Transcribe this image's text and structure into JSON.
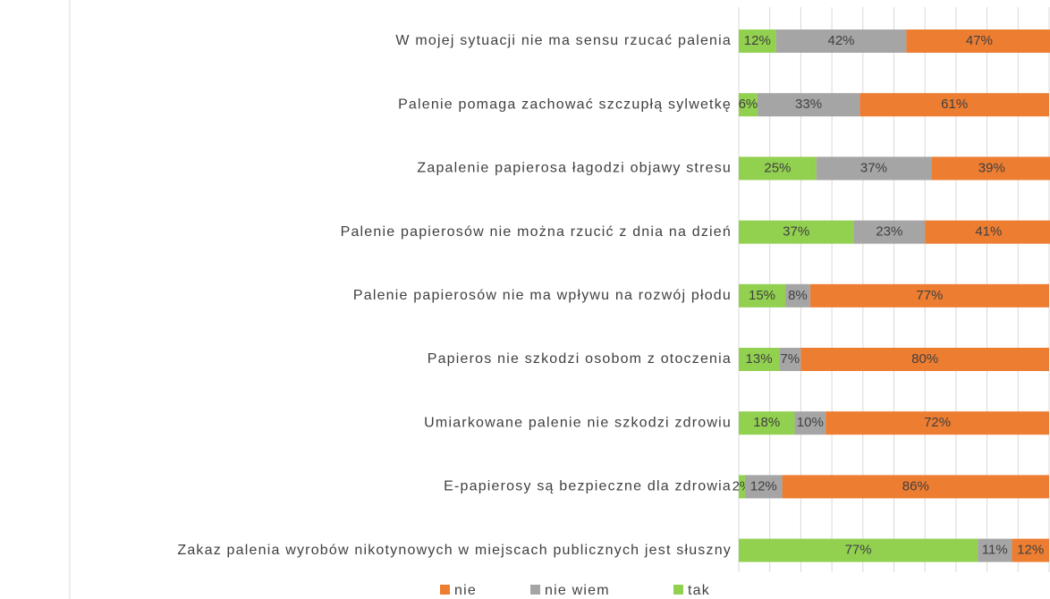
{
  "chart_data": {
    "type": "stacked_bar_horizontal",
    "categories": [
      "W mojej sytuacji nie ma sensu rzucać palenia",
      "Palenie pomaga zachować szczupłą sylwetkę",
      "Zapalenie papierosa łagodzi objawy stresu",
      "Palenie papierosów nie można rzucić z dnia na dzień",
      "Palenie papierosów nie ma wpływu na rozwój płodu",
      "Papieros nie szkodzi osobom z otoczenia",
      "Umiarkowane palenie nie szkodzi zdrowiu",
      "E-papierosy są bezpieczne dla zdrowia",
      "Zakaz palenia wyrobów nikotynowych w miejscach publicznych jest słuszny"
    ],
    "series": [
      {
        "name": "nie",
        "color": "#ed7d31",
        "values": [
          47,
          61,
          39,
          41,
          77,
          80,
          72,
          86,
          12
        ],
        "value_labels": [
          "47%",
          "61%",
          "39%",
          "41%",
          "77%",
          "80%",
          "72%",
          "86%",
          "12%"
        ]
      },
      {
        "name": "nie wiem",
        "color": "#a5a5a5",
        "values": [
          42,
          33,
          37,
          23,
          8,
          7,
          10,
          12,
          11
        ],
        "value_labels": [
          "42%",
          "33%",
          "37%",
          "23%",
          "8%",
          "7%",
          "10%",
          "12%",
          "11%"
        ]
      },
      {
        "name": "tak",
        "color": "#92d050",
        "values": [
          12,
          6,
          25,
          37,
          15,
          13,
          18,
          2,
          77
        ],
        "value_labels": [
          "12%",
          "6%",
          "25%",
          "37%",
          "15%",
          "13%",
          "18%",
          "2%",
          "77%"
        ]
      }
    ],
    "xlim": [
      0,
      100
    ],
    "xticks": [
      0,
      10,
      20,
      30,
      40,
      50,
      60,
      70,
      80,
      90,
      100
    ],
    "grid": true,
    "legend": "bottom"
  }
}
